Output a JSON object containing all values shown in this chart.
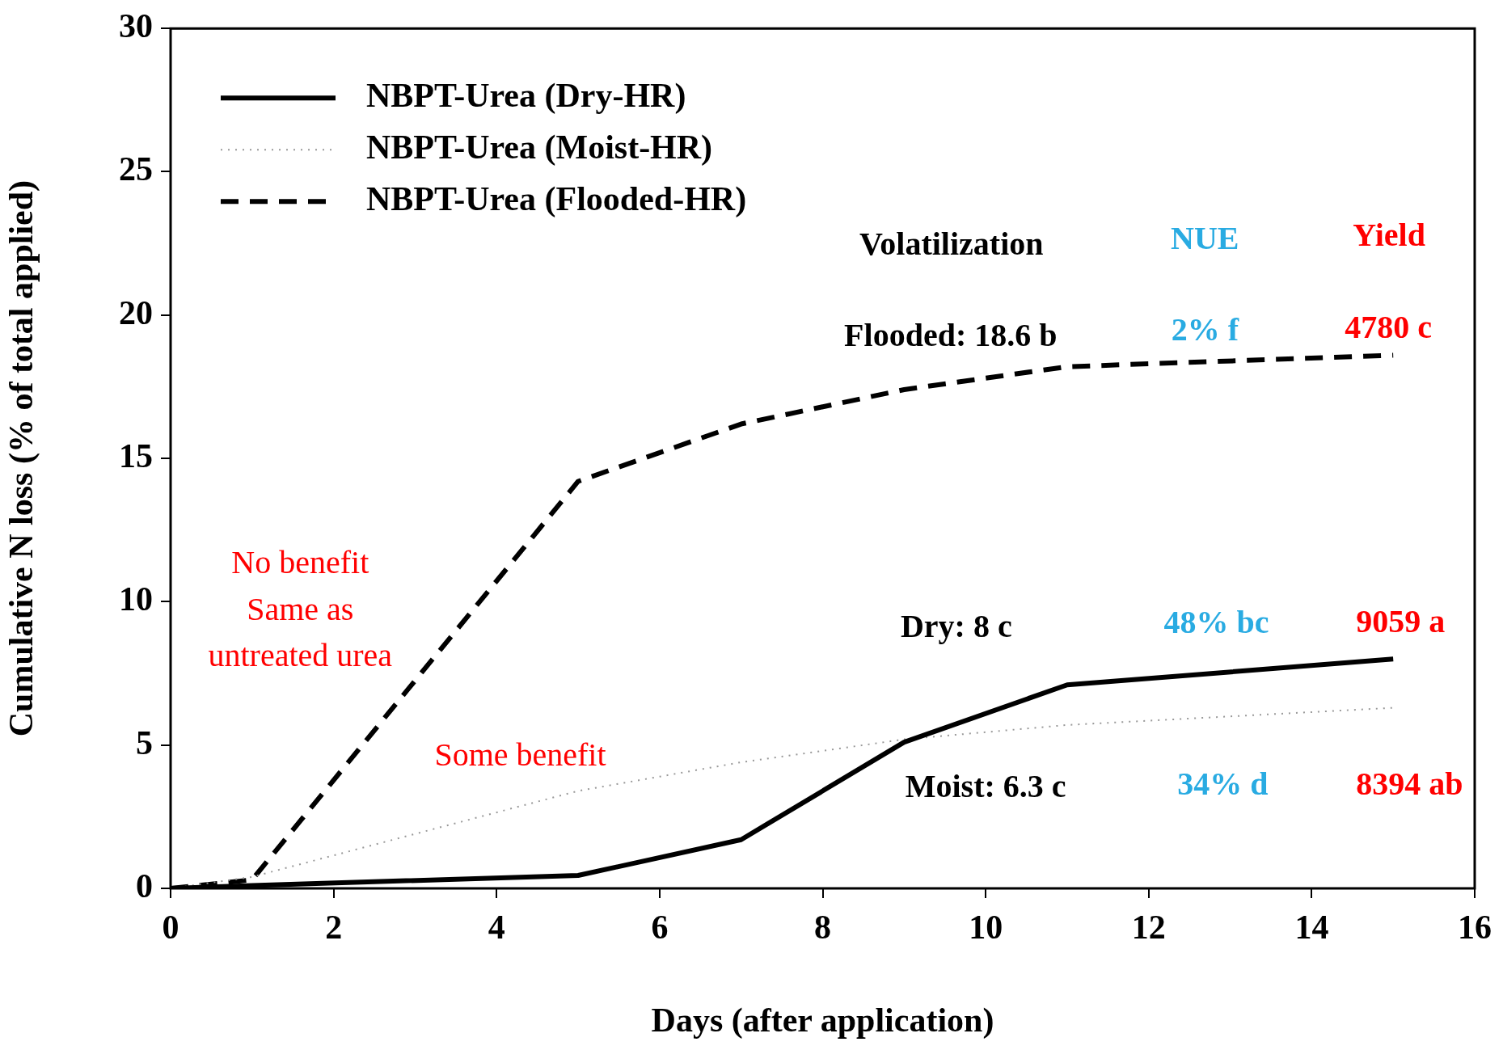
{
  "chart_data": {
    "type": "line",
    "xlabel": "Days (after application)",
    "ylabel": "Cumulative N loss (% of total applied)",
    "xlim": [
      0,
      16
    ],
    "xticks": [
      0,
      2,
      4,
      6,
      8,
      10,
      12,
      14,
      16
    ],
    "ylim": [
      0,
      30
    ],
    "yticks": [
      0,
      5,
      10,
      15,
      20,
      25,
      30
    ],
    "grid": false,
    "legend": "top left",
    "marker": "none",
    "series": [
      {
        "name": "NBPT-Urea (Dry-HR)",
        "color": "#000000",
        "line_style": "solid",
        "x": [
          0,
          1,
          5,
          7,
          9,
          11,
          15
        ],
        "values": [
          0,
          0.1,
          0.45,
          1.7,
          5.1,
          7.1,
          8.0
        ]
      },
      {
        "name": "NBPT-Urea (Moist-HR)",
        "color": "#999999",
        "line_style": "dotted",
        "x": [
          0,
          1,
          5,
          7,
          9,
          11,
          15
        ],
        "values": [
          0,
          0.4,
          3.4,
          4.4,
          5.2,
          5.7,
          6.3
        ]
      },
      {
        "name": "NBPT-Urea (Flooded-HR)",
        "color": "#000000",
        "line_style": "dashed",
        "x": [
          0,
          1,
          5,
          7,
          9,
          11,
          15
        ],
        "values": [
          0,
          0.3,
          14.2,
          16.2,
          17.4,
          18.2,
          18.6
        ]
      }
    ],
    "annotations": [
      "Volatilization",
      "NUE",
      "Yield",
      "Flooded: 18.6 b",
      "2% f",
      "4780 c",
      "Dry: 8 c",
      "48% bc",
      "9059 a",
      "Moist: 6.3 c",
      "34% d",
      "8394 ab",
      "No benefit",
      "Same as",
      "untreated urea",
      "Some benefit"
    ]
  }
}
